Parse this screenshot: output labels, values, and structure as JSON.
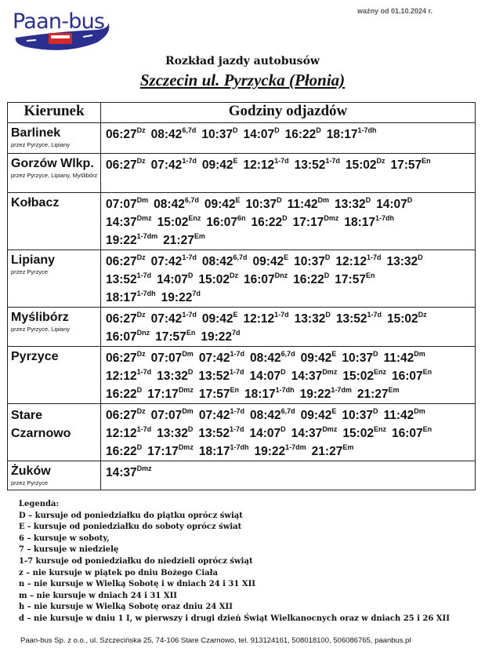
{
  "logo_text": "Paan-bus",
  "colors": {
    "logo_blue": "#2b2f8f",
    "bus_red": "#d42a2a"
  },
  "valid_from": "ważny od 01.10.2024 r.",
  "title": "Rozkład jazdy autobusów",
  "subtitle": "Szczecin ul. Pyrzycka (Płonia)",
  "table": {
    "headers": [
      "Kierunek",
      "Godziny odjazdów"
    ],
    "rows": [
      {
        "dest": "Barlinek",
        "via": "przez Pyrzyce, Lipiany",
        "lines": [
          [
            [
              "06:27",
              "Dz"
            ],
            [
              "08:42",
              "6,7d"
            ],
            [
              "10:37",
              "D"
            ],
            [
              "14:07",
              "D"
            ],
            [
              "16:22",
              "D"
            ],
            [
              "18:17",
              "1-7dh"
            ]
          ]
        ]
      },
      {
        "dest": "Gorzów Wlkp.",
        "via": "przez Pyrzyce, Lipiany, Myślibórz",
        "lines": [
          [
            [
              "06:27",
              "Dz"
            ],
            [
              "07:42",
              "1-7d"
            ],
            [
              "09:42",
              "E"
            ],
            [
              "12:12",
              "1-7d"
            ],
            [
              "13:52",
              "1-7d"
            ],
            [
              "15:02",
              "Dz"
            ],
            [
              "17:57",
              "En"
            ]
          ]
        ]
      },
      {
        "dest": "Kołbacz",
        "via": "",
        "lines": [
          [
            [
              "07:07",
              "Dm"
            ],
            [
              "08:42",
              "6,7d"
            ],
            [
              "09:42",
              "E"
            ],
            [
              "10:37",
              "D"
            ],
            [
              "11:42",
              "Dm"
            ],
            [
              "13:32",
              "D"
            ],
            [
              "14:07",
              "D"
            ]
          ],
          [
            [
              "14:37",
              "Dmz"
            ],
            [
              "15:02",
              "Enz"
            ],
            [
              "16:07",
              "6n"
            ],
            [
              "16:22",
              "D"
            ],
            [
              "17:17",
              "Dmz"
            ],
            [
              "18:17",
              "1-7dh"
            ]
          ],
          [
            [
              "19:22",
              "1-7dm"
            ],
            [
              "21:27",
              "Em"
            ]
          ]
        ]
      },
      {
        "dest": "Lipiany",
        "via": "przez Pyrzyce",
        "lines": [
          [
            [
              "06:27",
              "Dz"
            ],
            [
              "07:42",
              "1-7d"
            ],
            [
              "08:42",
              "6,7d"
            ],
            [
              "09:42",
              "E"
            ],
            [
              "10:37",
              "D"
            ],
            [
              "12:12",
              "1-7d"
            ],
            [
              "13:32",
              "D"
            ]
          ],
          [
            [
              "13:52",
              "1-7d"
            ],
            [
              "14:07",
              "D"
            ],
            [
              "15:02",
              "Dz"
            ],
            [
              "16:07",
              "Dnz"
            ],
            [
              "16:22",
              "D"
            ],
            [
              "17:57",
              "En"
            ]
          ],
          [
            [
              "18:17",
              "1-7dh"
            ],
            [
              "19:22",
              "7d"
            ]
          ]
        ]
      },
      {
        "dest": "Myślibórz",
        "via": "przez Pyrzyce, Lipiany",
        "lines": [
          [
            [
              "06:27",
              "Dz"
            ],
            [
              "07:42",
              "1-7d"
            ],
            [
              "09:42",
              "E"
            ],
            [
              "12:12",
              "1-7d"
            ],
            [
              "13:32",
              "D"
            ],
            [
              "13:52",
              "1-7d"
            ],
            [
              "15:02",
              "Dz"
            ]
          ],
          [
            [
              "16:07",
              "Dnz"
            ],
            [
              "17:57",
              "En"
            ],
            [
              "19:22",
              "7d"
            ]
          ]
        ]
      },
      {
        "dest": "Pyrzyce",
        "via": "",
        "lines": [
          [
            [
              "06:27",
              "Dz"
            ],
            [
              "07:07",
              "Dm"
            ],
            [
              "07:42",
              "1-7d"
            ],
            [
              "08:42",
              "6,7d"
            ],
            [
              "09:42",
              "E"
            ],
            [
              "10:37",
              "D"
            ],
            [
              "11:42",
              "Dm"
            ]
          ],
          [
            [
              "12:12",
              "1-7d"
            ],
            [
              "13:32",
              "D"
            ],
            [
              "13:52",
              "1-7d"
            ],
            [
              "14:07",
              "D"
            ],
            [
              "14:37",
              "Dmz"
            ],
            [
              "15:02",
              "Enz"
            ],
            [
              "16:07",
              "En"
            ]
          ],
          [
            [
              "16:22",
              "D"
            ],
            [
              "17:17",
              "Dmz"
            ],
            [
              "17:57",
              "En"
            ],
            [
              "18:17",
              "1-7dh"
            ],
            [
              "19:22",
              "1-7dm"
            ],
            [
              "21:27",
              "Em"
            ]
          ]
        ]
      },
      {
        "dest": "Stare Czarnowo",
        "via": "",
        "lines": [
          [
            [
              "06:27",
              "Dz"
            ],
            [
              "07:07",
              "Dm"
            ],
            [
              "07:42",
              "1-7d"
            ],
            [
              "08:42",
              "6,7d"
            ],
            [
              "09:42",
              "E"
            ],
            [
              "10:37",
              "D"
            ],
            [
              "11:42",
              "Dm"
            ]
          ],
          [
            [
              "12:12",
              "1-7d"
            ],
            [
              "13:32",
              "D"
            ],
            [
              "13:52",
              "1-7d"
            ],
            [
              "14:07",
              "D"
            ],
            [
              "14:37",
              "Dmz"
            ],
            [
              "15:02",
              "Enz"
            ],
            [
              "16:07",
              "En"
            ]
          ],
          [
            [
              "16:22",
              "D"
            ],
            [
              "17:17",
              "Dmz"
            ],
            [
              "18:17",
              "1-7dh"
            ],
            [
              "19:22",
              "1-7dm"
            ],
            [
              "21:27",
              "Em"
            ]
          ]
        ]
      },
      {
        "dest": "Żuków",
        "via": "przez Pyrzyce",
        "lines": [
          [
            [
              "14:37",
              "Dmz"
            ]
          ]
        ]
      }
    ]
  },
  "legend": {
    "title": "Legenda:",
    "items": [
      "D – kursuje od poniedziałku do piątku oprócz świąt",
      "E  - kursuje od poniedziałku do soboty oprócz świat",
      "6 – kursuje w soboty,",
      "7 – kursuje w niedzielę",
      "1-7  kursuje od poniedziałku do niedzieli oprócz świąt",
      "z – nie kursuje w piątek po dniu Bożego Ciała",
      "n – nie kursuje w Wielką Sobotę i w dniach 24 i 31 XII",
      "m – nie kursuje w dniach 24 i 31 XII",
      "h – nie kursuje w Wielką Sobotę oraz dniu 24 XII",
      "d – nie kursuje w dniu 1 I, w pierwszy i drugi dzień Świąt Wielkanocnych oraz w dniach 25 i 26 XII"
    ]
  },
  "footer": "Paan-bus Sp. z o.o., ul. Szczecińska 25, 74-106 Stare Czarnowo, tel. 913124161, 508018100, 506086765,   paanbus.pl"
}
